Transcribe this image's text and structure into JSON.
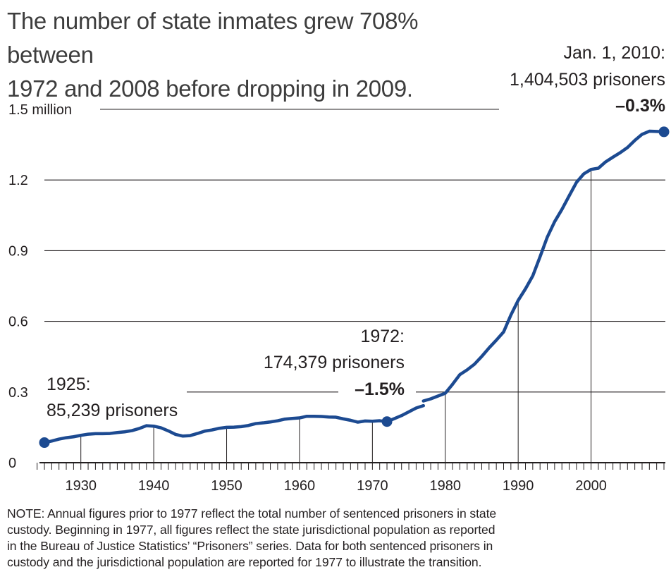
{
  "title": {
    "line1": "The number of state inmates grew 708% between",
    "line2": "1972 and 2008 before dropping in 2009."
  },
  "chart_data": {
    "type": "line",
    "title": "The number of state inmates grew 708% between 1972 and 2008 before dropping in 2009.",
    "xlabel": "",
    "ylabel": "",
    "xlim": [
      1925,
      2010
    ],
    "ylim": [
      0,
      1.5
    ],
    "x_tick_labels": [
      "1930",
      "1940",
      "1950",
      "1960",
      "1970",
      "1980",
      "1990",
      "2000"
    ],
    "x_tick_values": [
      1930,
      1940,
      1950,
      1960,
      1970,
      1980,
      1990,
      2000
    ],
    "y_tick_labels": [
      "0",
      "0.3",
      "0.6",
      "0.9",
      "1.2",
      "1.5 million"
    ],
    "y_tick_values": [
      0,
      0.3,
      0.6,
      0.9,
      1.2,
      1.5
    ],
    "grid": "horizontal",
    "series": [
      {
        "segment": "sentenced",
        "x": [
          1925,
          1926,
          1927,
          1928,
          1929,
          1930,
          1931,
          1932,
          1933,
          1934,
          1935,
          1936,
          1937,
          1938,
          1939,
          1940,
          1941,
          1942,
          1943,
          1944,
          1945,
          1946,
          1947,
          1948,
          1949,
          1950,
          1951,
          1952,
          1953,
          1954,
          1955,
          1956,
          1957,
          1958,
          1959,
          1960,
          1961,
          1962,
          1963,
          1964,
          1965,
          1966,
          1967,
          1968,
          1969,
          1970,
          1971,
          1972,
          1973,
          1974,
          1975,
          1976,
          1977
        ],
        "y": [
          0.085,
          0.092,
          0.1,
          0.106,
          0.11,
          0.116,
          0.121,
          0.123,
          0.123,
          0.124,
          0.128,
          0.131,
          0.136,
          0.145,
          0.157,
          0.155,
          0.148,
          0.135,
          0.12,
          0.113,
          0.115,
          0.124,
          0.134,
          0.139,
          0.146,
          0.15,
          0.151,
          0.153,
          0.158,
          0.166,
          0.169,
          0.173,
          0.178,
          0.185,
          0.188,
          0.19,
          0.197,
          0.197,
          0.196,
          0.194,
          0.193,
          0.186,
          0.18,
          0.172,
          0.177,
          0.176,
          0.178,
          0.174,
          0.187,
          0.2,
          0.216,
          0.232,
          0.242
        ]
      },
      {
        "segment": "jurisdictional",
        "x": [
          1977,
          1978,
          1979,
          1980,
          1981,
          1982,
          1983,
          1984,
          1985,
          1986,
          1987,
          1988,
          1989,
          1990,
          1991,
          1992,
          1993,
          1994,
          1995,
          1996,
          1997,
          1998,
          1999,
          2000,
          2001,
          2002,
          2003,
          2004,
          2005,
          2006,
          2007,
          2008,
          2009,
          2010
        ],
        "y": [
          0.262,
          0.271,
          0.283,
          0.295,
          0.333,
          0.374,
          0.394,
          0.418,
          0.451,
          0.487,
          0.52,
          0.555,
          0.627,
          0.689,
          0.738,
          0.793,
          0.874,
          0.958,
          1.023,
          1.075,
          1.133,
          1.19,
          1.226,
          1.245,
          1.25,
          1.277,
          1.297,
          1.316,
          1.338,
          1.368,
          1.394,
          1.407,
          1.406,
          1.405
        ]
      }
    ],
    "annotations": [
      {
        "x": 1925,
        "y": 0.085239,
        "line1": "1925:",
        "line2": "85,239 prisoners"
      },
      {
        "x": 1972,
        "y": 0.174379,
        "line1": "1972:",
        "line2": "174,379 prisoners",
        "line3": "–1.5%"
      },
      {
        "x": 2010,
        "y": 1.404503,
        "line1": "Jan. 1, 2010:",
        "line2": "1,404,503 prisoners",
        "line3": "–0.3%"
      }
    ],
    "colors": {
      "line": "#1c4a91",
      "grid": "#231f20"
    }
  },
  "note": {
    "line1": "NOTE: Annual figures prior to 1977 reflect the total number of sentenced prisoners in state",
    "line2": "custody.  Beginning in 1977, all figures reflect the state jurisdictional population as reported",
    "line3": "in the Bureau of Justice Statistics’ “Prisoners” series.  Data for both sentenced prisoners in",
    "line4": "custody and the jurisdictional population are reported for 1977 to illustrate the transition."
  }
}
